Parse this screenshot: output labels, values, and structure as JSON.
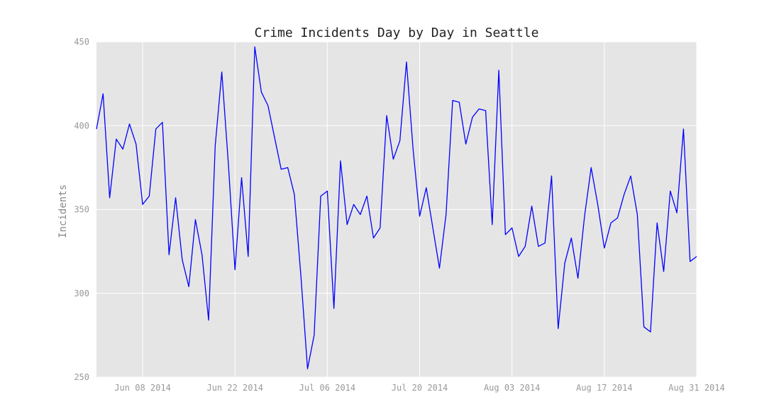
{
  "chart_data": {
    "type": "line",
    "title": "Crime Incidents Day by Day in Seattle",
    "xlabel": "",
    "ylabel": "Incidents",
    "ylim": [
      250,
      450
    ],
    "xlim": [
      "2014-06-01",
      "2014-08-31"
    ],
    "grid": true,
    "background": "#e5e5e5",
    "grid_color": "#ffffff",
    "line_color": "#0000ff",
    "yticks": [
      250,
      300,
      350,
      400,
      450
    ],
    "xticks": [
      {
        "date": "2014-06-08",
        "label": "Jun 08 2014"
      },
      {
        "date": "2014-06-22",
        "label": "Jun 22 2014"
      },
      {
        "date": "2014-07-06",
        "label": "Jul 06 2014"
      },
      {
        "date": "2014-07-20",
        "label": "Jul 20 2014"
      },
      {
        "date": "2014-08-03",
        "label": "Aug 03 2014"
      },
      {
        "date": "2014-08-17",
        "label": "Aug 17 2014"
      },
      {
        "date": "2014-08-31",
        "label": "Aug 31 2014"
      }
    ],
    "series": [
      {
        "x": [
          "2014-06-01",
          "2014-06-02",
          "2014-06-03",
          "2014-06-04",
          "2014-06-05",
          "2014-06-06",
          "2014-06-07",
          "2014-06-08",
          "2014-06-09",
          "2014-06-10",
          "2014-06-11",
          "2014-06-12",
          "2014-06-13",
          "2014-06-14",
          "2014-06-15",
          "2014-06-16",
          "2014-06-17",
          "2014-06-18",
          "2014-06-19",
          "2014-06-20",
          "2014-06-21",
          "2014-06-22",
          "2014-06-23",
          "2014-06-24",
          "2014-06-25",
          "2014-06-26",
          "2014-06-27",
          "2014-06-28",
          "2014-06-29",
          "2014-06-30",
          "2014-07-01",
          "2014-07-02",
          "2014-07-03",
          "2014-07-04",
          "2014-07-05",
          "2014-07-06",
          "2014-07-07",
          "2014-07-08",
          "2014-07-09",
          "2014-07-10",
          "2014-07-11",
          "2014-07-12",
          "2014-07-13",
          "2014-07-14",
          "2014-07-15",
          "2014-07-16",
          "2014-07-17",
          "2014-07-18",
          "2014-07-19",
          "2014-07-20",
          "2014-07-21",
          "2014-07-22",
          "2014-07-23",
          "2014-07-24",
          "2014-07-25",
          "2014-07-26",
          "2014-07-27",
          "2014-07-28",
          "2014-07-29",
          "2014-07-30",
          "2014-07-31",
          "2014-08-01",
          "2014-08-02",
          "2014-08-03",
          "2014-08-04",
          "2014-08-05",
          "2014-08-06",
          "2014-08-07",
          "2014-08-08",
          "2014-08-09",
          "2014-08-10",
          "2014-08-11",
          "2014-08-12",
          "2014-08-13",
          "2014-08-14",
          "2014-08-15",
          "2014-08-16",
          "2014-08-17",
          "2014-08-18",
          "2014-08-19",
          "2014-08-20",
          "2014-08-21",
          "2014-08-22",
          "2014-08-23",
          "2014-08-24",
          "2014-08-25",
          "2014-08-26",
          "2014-08-27",
          "2014-08-28",
          "2014-08-29",
          "2014-08-30",
          "2014-08-31"
        ],
        "values": [
          398,
          419,
          357,
          392,
          386,
          401,
          389,
          353,
          358,
          398,
          402,
          323,
          357,
          320,
          304,
          344,
          323,
          284,
          388,
          432,
          377,
          314,
          369,
          322,
          447,
          420,
          412,
          393,
          374,
          375,
          359,
          310,
          255,
          275,
          358,
          361,
          291,
          379,
          341,
          353,
          347,
          358,
          333,
          339,
          406,
          380,
          391,
          438,
          386,
          346,
          363,
          339,
          315,
          347,
          415,
          414,
          389,
          405,
          410,
          409,
          341,
          433,
          335,
          339,
          322,
          328,
          352,
          328,
          330,
          370,
          279,
          318,
          333,
          309,
          346,
          375,
          353,
          327,
          342,
          345,
          359,
          370,
          347,
          280,
          277,
          342,
          313,
          361,
          348,
          398,
          319,
          322
        ]
      }
    ]
  }
}
